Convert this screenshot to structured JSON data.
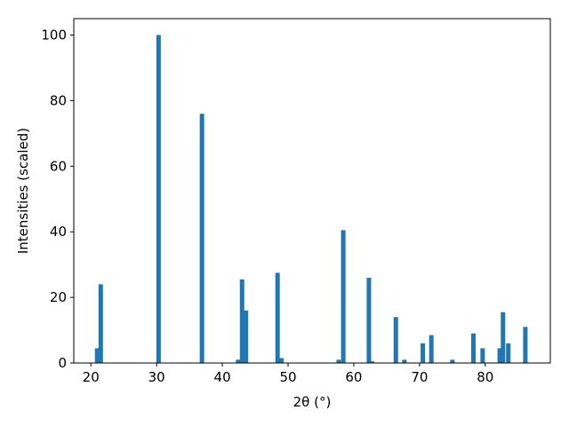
{
  "chart_data": {
    "type": "bar",
    "xlabel": "2θ (°)",
    "ylabel": "Intensities (scaled)",
    "x": [
      20.95,
      21.5,
      30.3,
      36.9,
      42.4,
      43.0,
      43.6,
      48.4,
      49.0,
      57.7,
      58.4,
      62.3,
      62.8,
      66.4,
      67.7,
      70.5,
      71.8,
      75.0,
      78.2,
      79.6,
      82.2,
      82.7,
      83.5,
      86.1
    ],
    "values": [
      4.5,
      24,
      100,
      76,
      1,
      25.5,
      16,
      27.5,
      1.5,
      1,
      40.5,
      26,
      0.5,
      14,
      1,
      6,
      8.5,
      1,
      9,
      4.5,
      4.5,
      15.5,
      6,
      11
    ],
    "color": "#1f77b4",
    "xlim": [
      17.4,
      89.9
    ],
    "xticks": [
      20,
      30,
      40,
      50,
      60,
      70,
      80
    ],
    "ylim": [
      0,
      105
    ],
    "yticks": [
      0,
      20,
      40,
      60,
      80,
      100
    ],
    "grid": false
  }
}
